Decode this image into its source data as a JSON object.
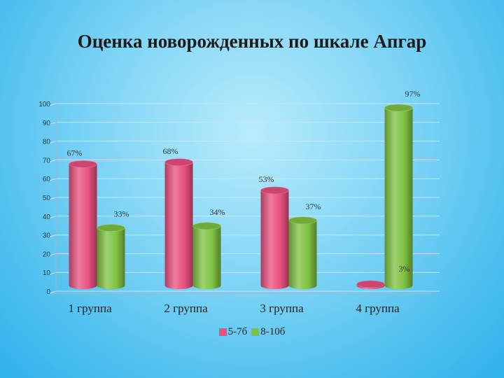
{
  "slide": {
    "title": "Оценка новорожденных по шкале Апгар"
  },
  "colors": {
    "series1": "#e8507f",
    "series2": "#7fc241"
  },
  "chart_data": {
    "type": "bar",
    "title": "Оценка новорожденных по шкале Апгар",
    "categories": [
      "1 группа",
      "2 группа",
      "3 группа",
      "4 группа"
    ],
    "series": [
      {
        "name": "5-7б",
        "values": [
          67,
          68,
          53,
          3
        ],
        "labels": [
          "67%",
          "68%",
          "53%",
          "3%"
        ]
      },
      {
        "name": "8-10б",
        "values": [
          33,
          34,
          37,
          97
        ],
        "labels": [
          "33%",
          "34%",
          "37%",
          "97%"
        ]
      }
    ],
    "ylim": [
      0,
      100
    ],
    "yticks": [
      0,
      10,
      20,
      30,
      40,
      50,
      60,
      70,
      80,
      90,
      100
    ],
    "grid": true,
    "legend": "bottom"
  }
}
